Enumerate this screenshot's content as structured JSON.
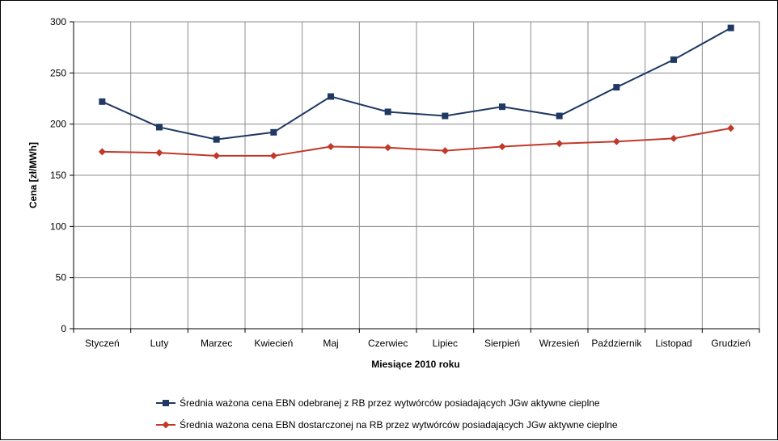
{
  "chart_data": {
    "type": "line",
    "xlabel": "Miesiące 2010  roku",
    "ylabel": "Cena [zł/MWh]",
    "ylim": [
      0,
      300
    ],
    "yticks": [
      0,
      50,
      100,
      150,
      200,
      250,
      300
    ],
    "grid": true,
    "legend_position": "bottom",
    "categories": [
      "Styczeń",
      "Luty",
      "Marzec",
      "Kwiecień",
      "Maj",
      "Czerwiec",
      "Lipiec",
      "Sierpień",
      "Wrzesień",
      "Październik",
      "Listopad",
      "Grudzień"
    ],
    "series": [
      {
        "name": "Średnia ważona cena EBN odebranej z RB  przez wytwórców posiadających JGw aktywne cieplne",
        "color": "#1f3864",
        "marker": "square",
        "values": [
          222,
          197,
          185,
          192,
          227,
          212,
          208,
          217,
          208,
          236,
          263,
          294
        ]
      },
      {
        "name": "Średnia ważona cena EBN dostarczonej na RB przez wytwórców posiadających JGw aktywne cieplne",
        "color": "#c0392b",
        "marker": "diamond",
        "values": [
          173,
          172,
          169,
          169,
          178,
          177,
          174,
          178,
          181,
          183,
          186,
          196
        ]
      }
    ]
  }
}
